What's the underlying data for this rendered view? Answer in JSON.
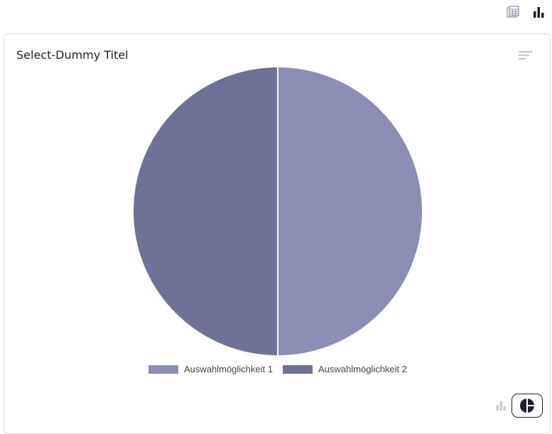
{
  "toolbar": {
    "icons": [
      "table-icon",
      "bar-chart-icon"
    ],
    "active": "bar-chart-icon"
  },
  "card": {
    "title": "Select-Dummy Titel",
    "sort_icon": "sort-lines-icon",
    "toggle": {
      "options": [
        "bar-chart-icon",
        "pie-chart-icon"
      ],
      "active": "pie-chart-icon"
    }
  },
  "colors": {
    "series_1": "#8a8eb5",
    "series_2": "#6e7296",
    "text_dark": "#1e1f2e",
    "icon_muted": "#c4c7d6"
  },
  "chart_data": {
    "type": "pie",
    "categories": [
      "Auswahlmöglichkeit 1",
      "Auswahlmöglichkeit 2"
    ],
    "values": [
      50,
      50
    ],
    "title": "Select-Dummy Titel",
    "legend": "bottom"
  }
}
